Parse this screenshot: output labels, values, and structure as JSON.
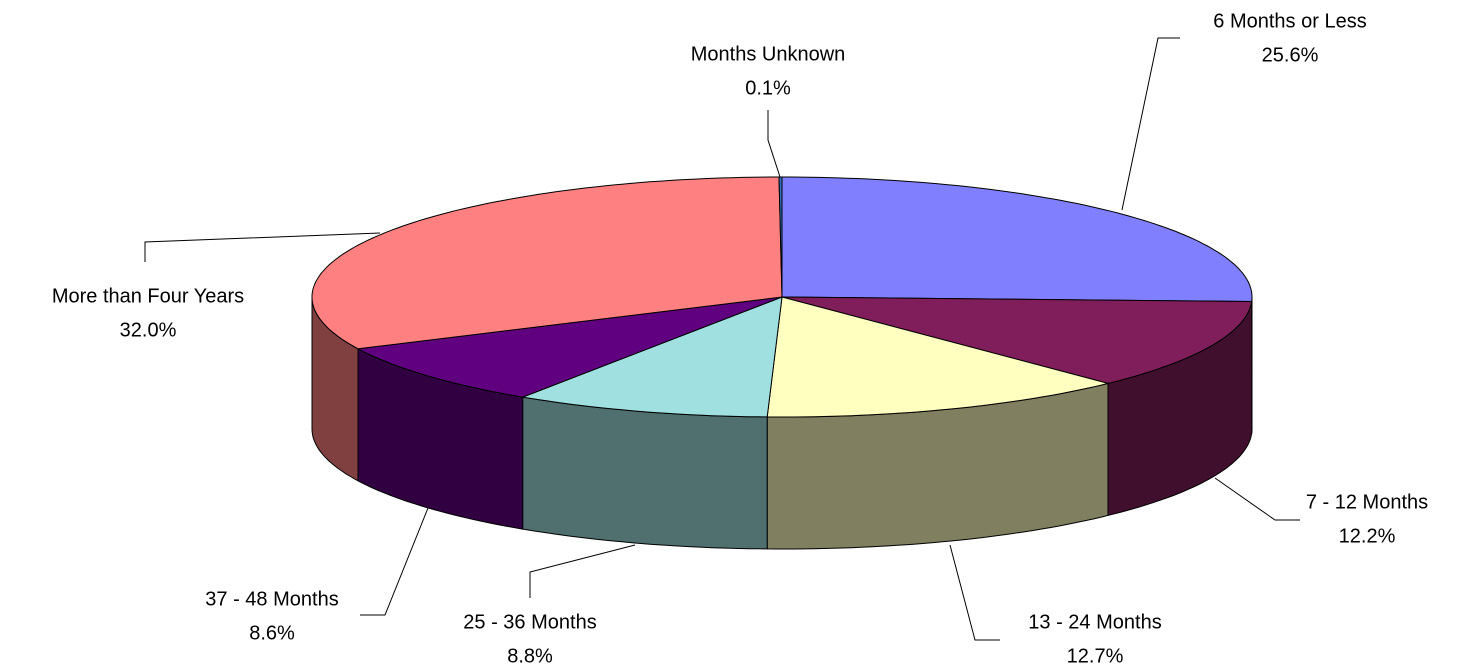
{
  "chart_data": {
    "type": "pie3d",
    "categories": [
      "6 Months or Less",
      "7 - 12 Months",
      "13 - 24 Months",
      "25 - 36 Months",
      "37 - 48 Months",
      "More than Four Years",
      "Months Unknown"
    ],
    "values": [
      25.6,
      12.2,
      12.7,
      8.8,
      8.6,
      32.0,
      0.1
    ],
    "value_labels": [
      "25.6%",
      "12.2%",
      "12.7%",
      "8.8%",
      "8.6%",
      "32.0%",
      "0.1%"
    ],
    "colors": [
      "#8080ff",
      "#801e5c",
      "#ffffc0",
      "#a0e0e0",
      "#600080",
      "#ff8080",
      "#3070c0"
    ]
  }
}
